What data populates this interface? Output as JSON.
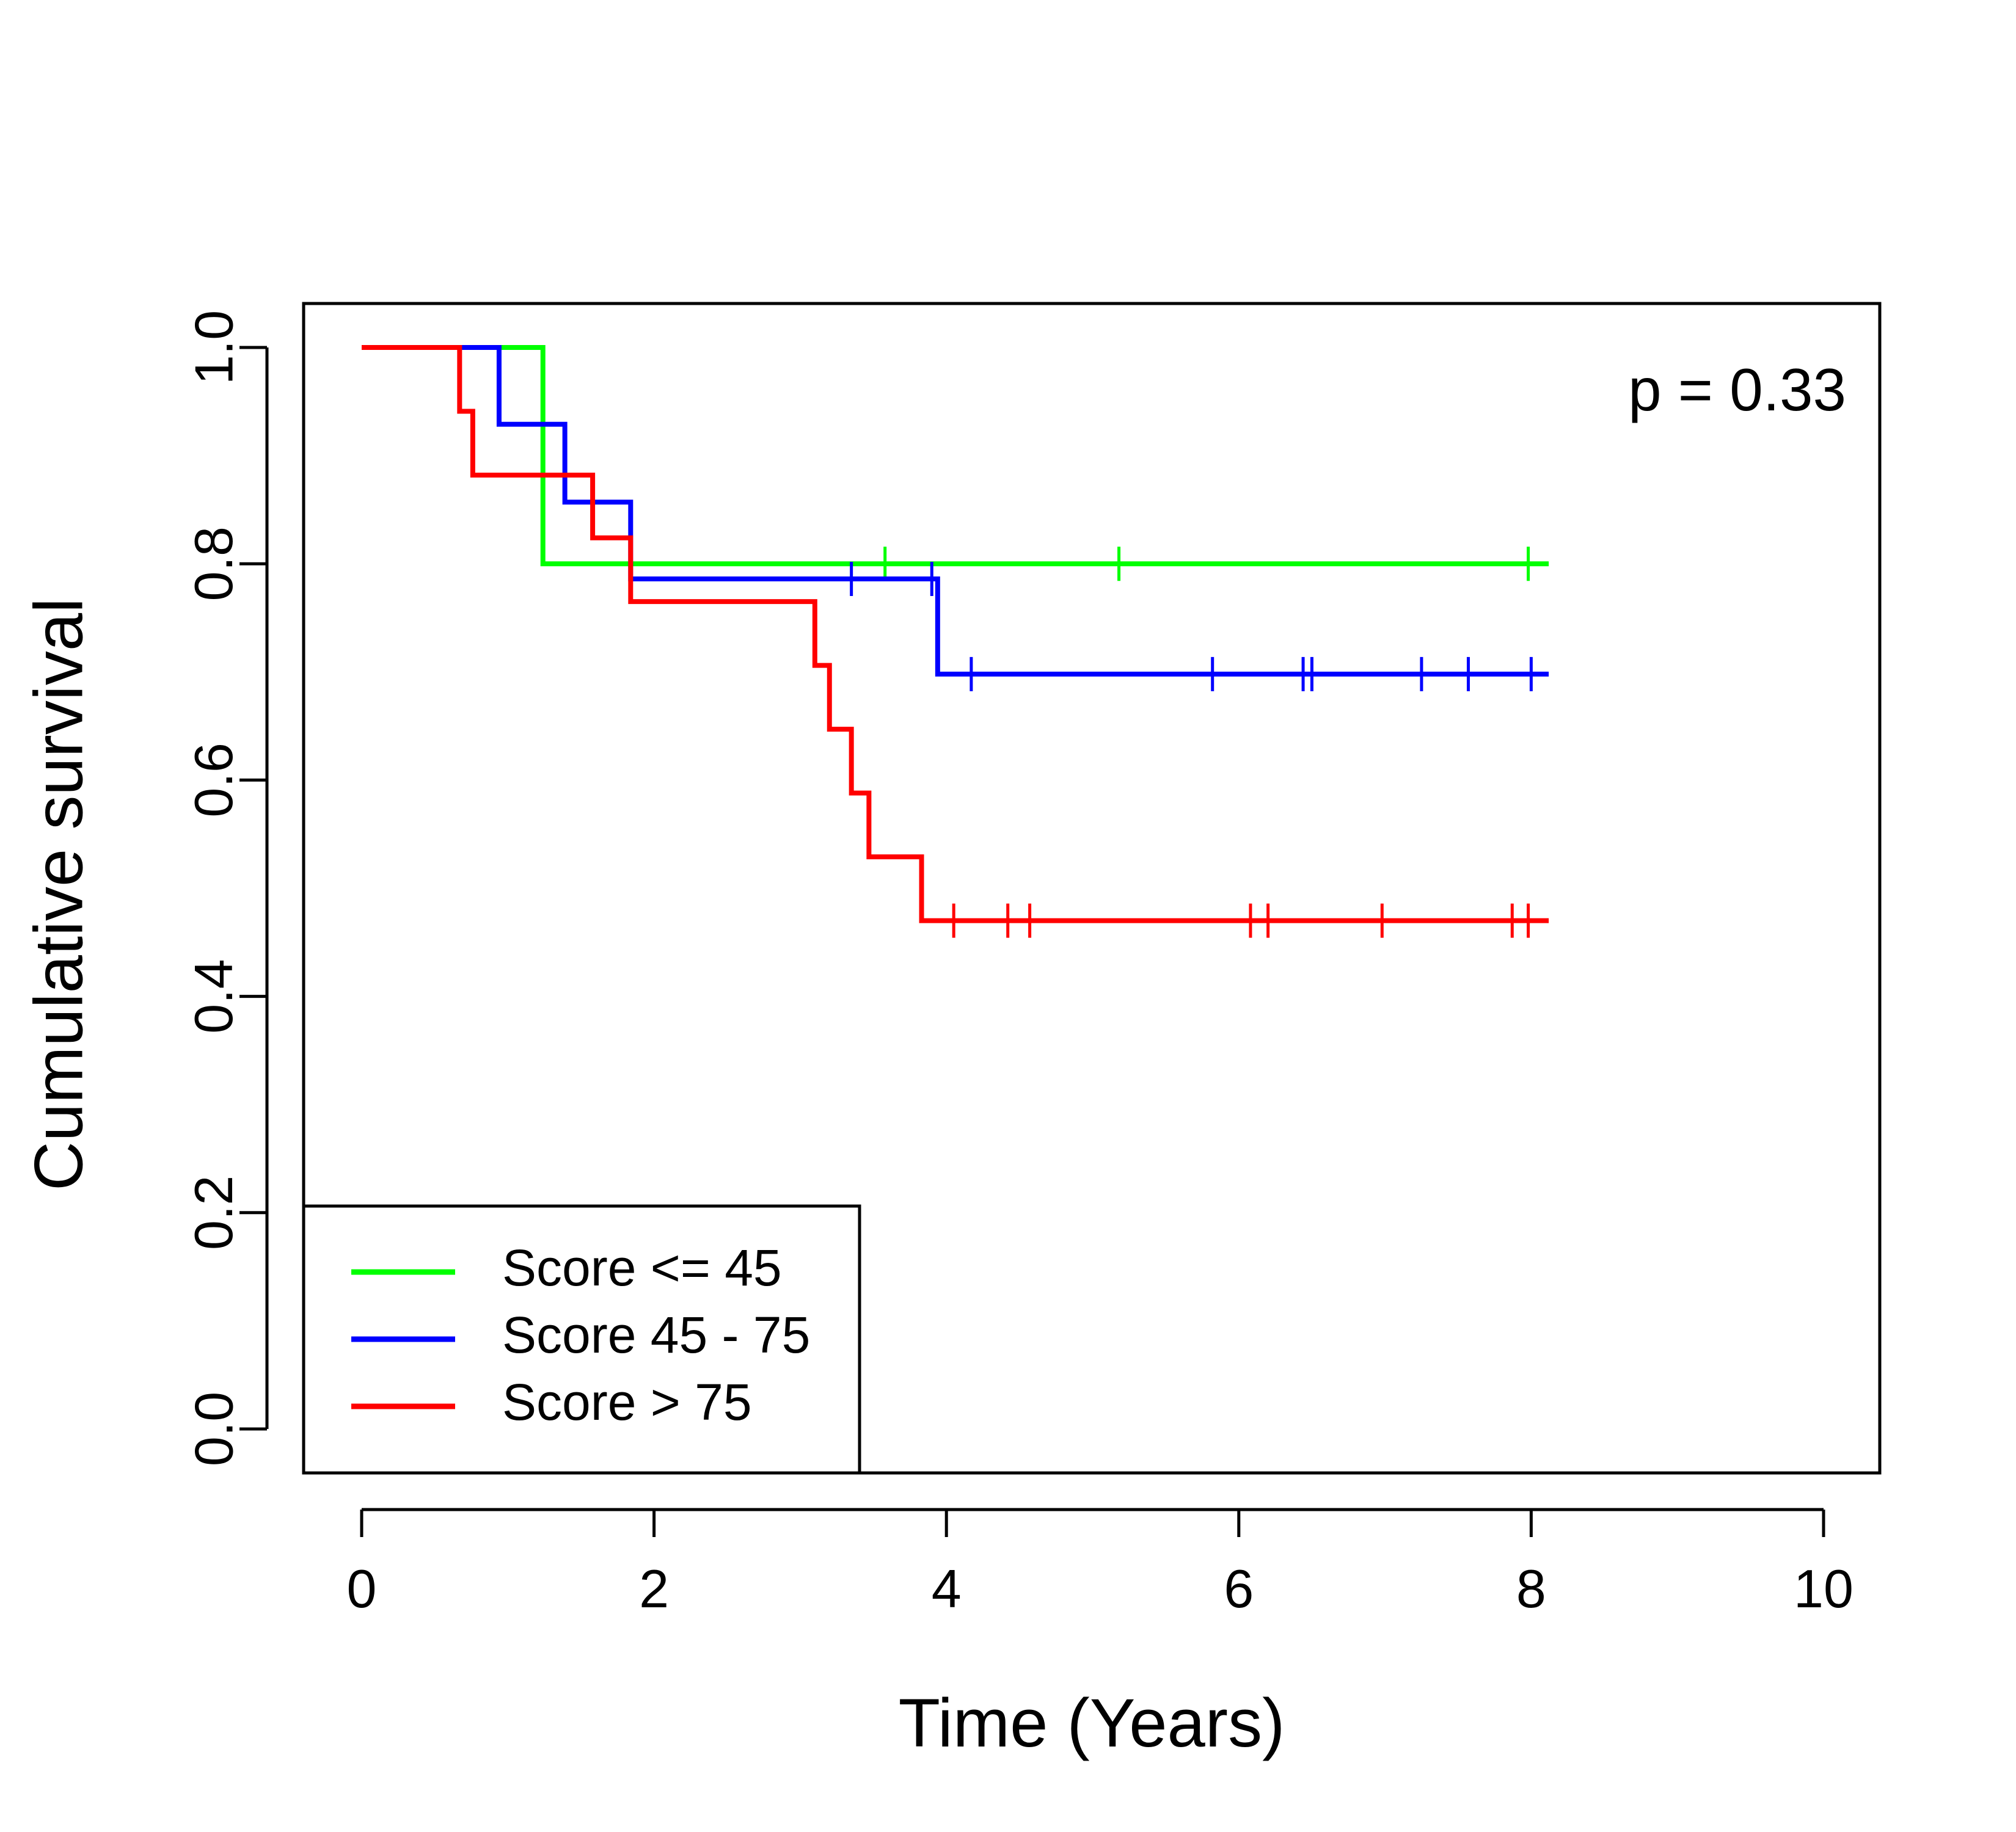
{
  "chart_data": {
    "type": "line",
    "subtype": "kaplan-meier-step",
    "title": "",
    "xlabel": "Time (Years)",
    "ylabel": "Cumulative survival",
    "xlim": [
      0,
      10
    ],
    "ylim": [
      0,
      1
    ],
    "xticks": [
      0,
      2,
      4,
      6,
      8,
      10
    ],
    "yticks": [
      0.0,
      0.2,
      0.4,
      0.6,
      0.8,
      1.0
    ],
    "xtick_labels": [
      "0",
      "2",
      "4",
      "6",
      "8",
      "10"
    ],
    "ytick_labels": [
      "0.0",
      "0.2",
      "0.4",
      "0.6",
      "0.8",
      "1.0"
    ],
    "grid": false,
    "legend_position": "bottom-left",
    "annotation": "p = 0.33",
    "series": [
      {
        "name": "Score <= 45",
        "color": "#00ff00",
        "steps": [
          [
            0,
            1.0
          ],
          [
            1.24,
            0.8
          ]
        ],
        "end": 8.12,
        "censored": [
          3.58,
          5.18,
          7.98
        ]
      },
      {
        "name": "Score 45 - 75",
        "color": "#0000ff",
        "steps": [
          [
            0,
            1.0
          ],
          [
            0.94,
            0.929
          ],
          [
            1.39,
            0.857
          ],
          [
            1.84,
            0.786
          ],
          [
            3.94,
            0.698
          ]
        ],
        "end": 8.12,
        "censored": [
          3.35,
          3.9,
          4.17,
          5.82,
          6.44,
          6.5,
          7.25,
          7.57,
          8.0
        ]
      },
      {
        "name": "Score > 75",
        "color": "#ff0000",
        "steps": [
          [
            0,
            1.0
          ],
          [
            0.67,
            0.941
          ],
          [
            0.76,
            0.882
          ],
          [
            1.58,
            0.824
          ],
          [
            1.84,
            0.765
          ],
          [
            3.1,
            0.706
          ],
          [
            3.2,
            0.647
          ],
          [
            3.35,
            0.588
          ],
          [
            3.47,
            0.529
          ],
          [
            3.83,
            0.47
          ]
        ],
        "end": 8.12,
        "censored": [
          4.05,
          4.42,
          4.57,
          6.08,
          6.2,
          6.98,
          7.87,
          7.98
        ]
      }
    ]
  }
}
